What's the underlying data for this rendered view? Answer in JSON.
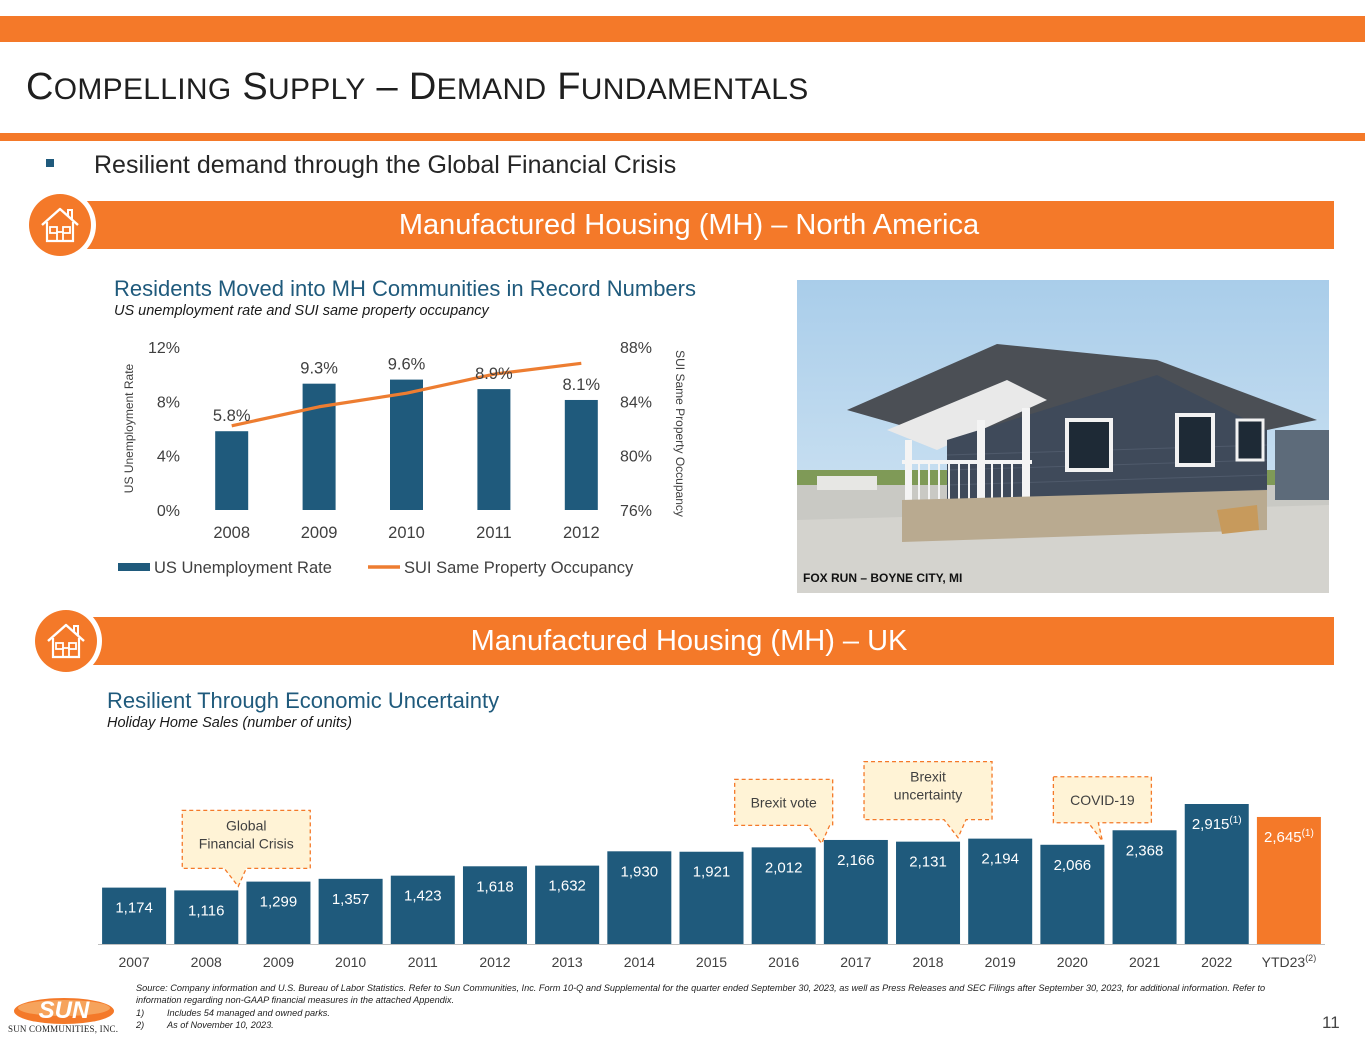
{
  "header": {
    "title_words": [
      {
        "cap": "C",
        "rest": "OMPELLING"
      },
      {
        "cap": "S",
        "rest": "UPPLY"
      },
      {
        "cap": "–",
        "rest": ""
      },
      {
        "cap": "D",
        "rest": "EMAND"
      },
      {
        "cap": "F",
        "rest": "UNDAMENTALS"
      }
    ]
  },
  "bullet": "Resilient demand through the Global Financial Crisis",
  "band_na": "Manufactured Housing (MH) – North America",
  "band_uk": "Manufactured Housing (MH) – UK",
  "photo": {
    "caption": "FOX RUN – BOYNE CITY, MI"
  },
  "icons": {
    "house": "house-icon",
    "accent": "#f47929",
    "navy": "#1f5a7c"
  },
  "chart_data": [
    {
      "type": "bar",
      "title": "Residents Moved into MH Communities in Record Numbers",
      "subtitle": "US unemployment rate and SUI same property occupancy",
      "categories": [
        "2008",
        "2009",
        "2010",
        "2011",
        "2012"
      ],
      "series": [
        {
          "name": "US Unemployment Rate",
          "type": "bar",
          "axis": "left",
          "values": [
            5.8,
            9.3,
            9.6,
            8.9,
            8.1
          ],
          "labels": [
            "5.8%",
            "9.3%",
            "9.6%",
            "8.9%",
            "8.1%"
          ],
          "color": "#1f5a7c"
        },
        {
          "name": "SUI Same Property Occupancy",
          "type": "line",
          "axis": "right",
          "values": [
            82.2,
            83.6,
            84.6,
            86.0,
            86.8
          ],
          "color": "#ed7d31"
        }
      ],
      "ylabel": "US Unemployment Rate",
      "ylim": [
        0,
        12
      ],
      "yticks": [
        "0%",
        "4%",
        "8%",
        "12%"
      ],
      "y2label": "SUI Same Property Occupancy",
      "y2lim": [
        76,
        88
      ],
      "y2ticks": [
        "76%",
        "80%",
        "84%",
        "88%"
      ],
      "legend": "bottom"
    },
    {
      "type": "bar",
      "title": "Resilient Through Economic Uncertainty",
      "subtitle": "Holiday Home Sales (number of units)",
      "categories": [
        "2007",
        "2008",
        "2009",
        "2010",
        "2011",
        "2012",
        "2013",
        "2014",
        "2015",
        "2016",
        "2017",
        "2018",
        "2019",
        "2020",
        "2021",
        "2022",
        "YTD23"
      ],
      "category_superscripts": {
        "YTD23": "(2)"
      },
      "values": [
        1174,
        1116,
        1299,
        1357,
        1423,
        1618,
        1632,
        1930,
        1921,
        2012,
        2166,
        2131,
        2194,
        2066,
        2368,
        2915,
        2645
      ],
      "labels": [
        "1,174",
        "1,116",
        "1,299",
        "1,357",
        "1,423",
        "1,618",
        "1,632",
        "1,930",
        "1,921",
        "2,012",
        "2,166",
        "2,131",
        "2,194",
        "2,066",
        "2,368",
        "2,915",
        "2,645"
      ],
      "label_superscripts": {
        "2022": "(1)",
        "YTD23": "(1)"
      },
      "colors": {
        "default": "#1f5a7c",
        "highlight": "#f47929",
        "highlight_category": "YTD23"
      },
      "annotations": [
        {
          "text_lines": [
            "Global",
            "Financial Crisis"
          ],
          "category": "2008"
        },
        {
          "text_lines": [
            "Brexit vote"
          ],
          "category": "2016"
        },
        {
          "text_lines": [
            "Brexit",
            "uncertainty"
          ],
          "category": "2018"
        },
        {
          "text_lines": [
            "COVID-19"
          ],
          "category": "2020"
        }
      ]
    }
  ],
  "footer": {
    "source": "Source: Company information and U.S. Bureau of Labor Statistics. Refer to Sun Communities, Inc. Form 10-Q and Supplemental for the quarter ended September 30, 2023, as well as Press Releases and SEC Filings after September 30, 2023, for additional information. Refer to information regarding non-GAAP financial measures in the attached Appendix.",
    "notes": [
      {
        "num": "1)",
        "text": "Includes 54 managed and owned parks."
      },
      {
        "num": "2)",
        "text": "As of November 10, 2023."
      }
    ],
    "page": "11",
    "logo_word": "SUN",
    "logo_text": "SUN COMMUNITIES, INC."
  }
}
